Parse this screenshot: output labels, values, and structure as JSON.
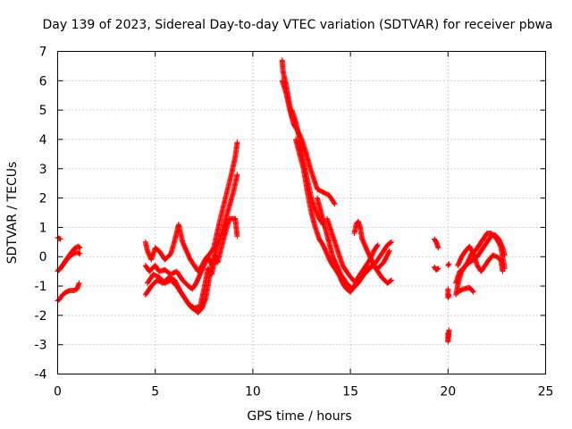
{
  "chart_data": {
    "type": "scatter",
    "title": "Day 139 of 2023, Sidereal Day-to-day VTEC variation (SDTVAR) for receiver pbwa",
    "xlabel": "GPS time / hours",
    "ylabel": "SDTVAR / TECUs",
    "xlim": [
      0,
      25
    ],
    "ylim": [
      -4,
      7
    ],
    "xticks": [
      "0",
      "5",
      "10",
      "15",
      "20",
      "25"
    ],
    "yticks": [
      "-4",
      "-3",
      "-2",
      "-1",
      "0",
      "1",
      "2",
      "3",
      "4",
      "5",
      "6",
      "7"
    ],
    "grid": true,
    "marker": "plus",
    "series": [
      {
        "name": "pbwa",
        "color": "#ff0000",
        "tracks": [
          [
            [
              0.0,
              0.65
            ],
            [
              0.08,
              0.62
            ],
            [
              0.15,
              0.6
            ]
          ],
          [
            [
              0.0,
              -0.5
            ],
            [
              0.15,
              -0.4
            ],
            [
              0.3,
              -0.25
            ],
            [
              0.5,
              -0.05
            ],
            [
              0.7,
              0.15
            ],
            [
              0.9,
              0.3
            ],
            [
              1.05,
              0.35
            ],
            [
              1.15,
              0.3
            ]
          ],
          [
            [
              0.05,
              -0.45
            ],
            [
              0.2,
              -0.35
            ],
            [
              0.4,
              -0.15
            ],
            [
              0.6,
              0.0
            ],
            [
              0.8,
              0.1
            ],
            [
              1.0,
              0.15
            ],
            [
              1.15,
              0.1
            ]
          ],
          [
            [
              0.0,
              -1.5
            ],
            [
              0.1,
              -1.45
            ],
            [
              0.25,
              -1.3
            ],
            [
              0.45,
              -1.2
            ],
            [
              0.65,
              -1.15
            ],
            [
              0.85,
              -1.15
            ],
            [
              1.0,
              -1.1
            ],
            [
              1.1,
              -0.9
            ]
          ],
          [
            [
              4.5,
              0.5
            ],
            [
              4.6,
              0.2
            ],
            [
              4.8,
              -0.1
            ],
            [
              5.0,
              0.3
            ],
            [
              5.2,
              0.2
            ],
            [
              5.5,
              -0.1
            ],
            [
              5.8,
              0.1
            ],
            [
              6.0,
              0.55
            ],
            [
              6.2,
              1.1
            ],
            [
              6.4,
              0.5
            ],
            [
              6.6,
              0.2
            ],
            [
              6.8,
              -0.1
            ],
            [
              7.0,
              -0.3
            ],
            [
              7.2,
              -0.5
            ],
            [
              7.4,
              -0.3
            ],
            [
              7.6,
              -0.05
            ],
            [
              7.8,
              0.1
            ],
            [
              8.0,
              0.3
            ],
            [
              8.3,
              1.2
            ],
            [
              8.6,
              2.0
            ],
            [
              8.9,
              2.8
            ],
            [
              9.1,
              3.4
            ],
            [
              9.2,
              3.9
            ]
          ],
          [
            [
              4.5,
              -0.3
            ],
            [
              4.7,
              -0.5
            ],
            [
              5.0,
              -0.3
            ],
            [
              5.2,
              -0.5
            ],
            [
              5.5,
              -0.45
            ],
            [
              5.8,
              -0.6
            ],
            [
              6.1,
              -0.5
            ],
            [
              6.4,
              -0.8
            ],
            [
              6.7,
              -1.0
            ],
            [
              6.9,
              -1.1
            ],
            [
              7.1,
              -0.9
            ],
            [
              7.3,
              -0.6
            ],
            [
              7.5,
              -0.3
            ],
            [
              7.7,
              0.0
            ],
            [
              7.9,
              -0.3
            ],
            [
              8.1,
              0.2
            ],
            [
              8.4,
              0.8
            ],
            [
              8.7,
              1.5
            ],
            [
              9.0,
              2.2
            ],
            [
              9.2,
              2.8
            ]
          ],
          [
            [
              4.5,
              -1.3
            ],
            [
              4.8,
              -1.0
            ],
            [
              5.1,
              -0.8
            ],
            [
              5.4,
              -0.9
            ],
            [
              5.7,
              -0.7
            ],
            [
              6.0,
              -0.8
            ],
            [
              6.3,
              -1.2
            ],
            [
              6.6,
              -1.5
            ],
            [
              6.8,
              -1.7
            ],
            [
              7.0,
              -1.8
            ],
            [
              7.2,
              -1.9
            ],
            [
              7.4,
              -1.75
            ],
            [
              7.6,
              -1.4
            ],
            [
              7.8,
              -0.6
            ],
            [
              8.0,
              -0.1
            ],
            [
              8.2,
              -0.2
            ],
            [
              8.5,
              0.6
            ],
            [
              8.8,
              1.3
            ],
            [
              9.1,
              1.3
            ],
            [
              9.2,
              0.7
            ]
          ],
          [
            [
              4.6,
              -0.9
            ],
            [
              4.9,
              -0.6
            ],
            [
              5.2,
              -0.7
            ],
            [
              5.5,
              -0.9
            ],
            [
              5.8,
              -0.8
            ],
            [
              6.1,
              -1.0
            ],
            [
              6.4,
              -1.3
            ],
            [
              6.7,
              -1.6
            ],
            [
              7.0,
              -1.75
            ],
            [
              7.3,
              -1.7
            ],
            [
              7.5,
              -1.1
            ],
            [
              7.7,
              -0.4
            ],
            [
              7.9,
              -0.6
            ],
            [
              8.1,
              0.05
            ]
          ],
          [
            [
              11.5,
              6.7
            ],
            [
              11.55,
              6.3
            ],
            [
              11.7,
              5.9
            ],
            [
              11.85,
              5.3
            ],
            [
              12.0,
              4.8
            ],
            [
              12.1,
              4.7
            ]
          ],
          [
            [
              11.5,
              6.0
            ],
            [
              11.7,
              5.6
            ],
            [
              11.9,
              5.0
            ],
            [
              12.1,
              4.5
            ],
            [
              12.3,
              4.3
            ],
            [
              12.5,
              4.0
            ],
            [
              12.7,
              3.6
            ],
            [
              12.9,
              3.1
            ],
            [
              13.1,
              2.7
            ],
            [
              13.3,
              2.3
            ],
            [
              13.6,
              2.2
            ],
            [
              13.9,
              2.1
            ],
            [
              14.2,
              1.8
            ]
          ],
          [
            [
              12.0,
              5.0
            ],
            [
              12.2,
              4.6
            ],
            [
              12.4,
              4.0
            ],
            [
              12.6,
              3.2
            ],
            [
              12.8,
              2.6
            ],
            [
              13.0,
              2.0
            ],
            [
              13.2,
              1.6
            ],
            [
              13.4,
              1.3
            ],
            [
              13.6,
              1.1
            ]
          ],
          [
            [
              12.2,
              4.0
            ],
            [
              12.4,
              3.5
            ],
            [
              12.6,
              3.0
            ],
            [
              12.8,
              2.2
            ],
            [
              13.0,
              1.5
            ],
            [
              13.2,
              1.0
            ],
            [
              13.4,
              0.6
            ],
            [
              13.6,
              0.4
            ],
            [
              13.8,
              0.1
            ],
            [
              14.0,
              -0.2
            ],
            [
              14.2,
              -0.4
            ],
            [
              14.4,
              -0.6
            ],
            [
              14.6,
              -0.9
            ],
            [
              14.8,
              -1.1
            ],
            [
              15.0,
              -1.2
            ],
            [
              15.2,
              -1.0
            ],
            [
              15.4,
              -0.7
            ],
            [
              15.6,
              -0.5
            ],
            [
              15.8,
              -0.3
            ],
            [
              16.0,
              -0.1
            ],
            [
              16.2,
              0.2
            ],
            [
              16.4,
              0.4
            ]
          ],
          [
            [
              13.3,
              2.0
            ],
            [
              13.5,
              1.5
            ],
            [
              13.7,
              1.0
            ],
            [
              13.9,
              0.5
            ],
            [
              14.1,
              0.0
            ],
            [
              14.3,
              -0.3
            ],
            [
              14.5,
              -0.6
            ],
            [
              14.8,
              -0.9
            ],
            [
              15.1,
              -1.1
            ],
            [
              15.4,
              -0.9
            ],
            [
              15.7,
              -0.6
            ],
            [
              16.0,
              -0.4
            ],
            [
              16.3,
              -0.2
            ],
            [
              16.6,
              0.1
            ],
            [
              16.9,
              0.4
            ],
            [
              17.1,
              0.5
            ]
          ],
          [
            [
              13.8,
              1.3
            ],
            [
              14.0,
              0.9
            ],
            [
              14.2,
              0.5
            ],
            [
              14.4,
              0.1
            ],
            [
              14.6,
              -0.3
            ],
            [
              14.9,
              -0.6
            ],
            [
              15.2,
              -0.85
            ],
            [
              15.5,
              -0.7
            ],
            [
              15.8,
              -0.5
            ],
            [
              16.1,
              -0.3
            ],
            [
              16.4,
              -0.4
            ],
            [
              16.7,
              -0.2
            ],
            [
              17.0,
              0.2
            ]
          ],
          [
            [
              15.2,
              0.8
            ],
            [
              15.3,
              1.1
            ],
            [
              15.4,
              1.2
            ],
            [
              15.5,
              1.0
            ],
            [
              15.6,
              0.6
            ],
            [
              15.8,
              0.3
            ],
            [
              16.0,
              0.0
            ],
            [
              16.3,
              -0.4
            ],
            [
              16.6,
              -0.7
            ],
            [
              16.9,
              -0.9
            ],
            [
              17.1,
              -0.8
            ]
          ],
          [
            [
              19.3,
              0.6
            ],
            [
              19.4,
              0.5
            ],
            [
              19.5,
              0.3
            ]
          ],
          [
            [
              19.3,
              -0.35
            ],
            [
              19.4,
              -0.45
            ],
            [
              19.5,
              -0.4
            ]
          ],
          [
            [
              20.0,
              -1.1
            ],
            [
              20.0,
              -1.4
            ],
            [
              20.05,
              -1.3
            ]
          ],
          [
            [
              20.0,
              -0.3
            ],
            [
              20.05,
              -0.25
            ]
          ],
          [
            [
              20.0,
              -2.6
            ],
            [
              20.0,
              -2.9
            ],
            [
              20.05,
              -2.5
            ]
          ],
          [
            [
              20.4,
              -1.3
            ],
            [
              20.5,
              -1.0
            ],
            [
              20.6,
              -0.7
            ],
            [
              20.7,
              -0.5
            ],
            [
              20.9,
              -0.3
            ],
            [
              21.1,
              -0.2
            ],
            [
              21.3,
              -0.1
            ],
            [
              21.5,
              0.0
            ],
            [
              21.8,
              0.3
            ],
            [
              22.0,
              0.5
            ],
            [
              22.2,
              0.7
            ],
            [
              22.4,
              0.75
            ],
            [
              22.6,
              0.6
            ],
            [
              22.8,
              0.3
            ],
            [
              22.9,
              0.05
            ]
          ],
          [
            [
              20.4,
              -0.9
            ],
            [
              20.6,
              -0.5
            ],
            [
              20.8,
              -0.4
            ],
            [
              21.0,
              -0.2
            ],
            [
              21.2,
              0.1
            ],
            [
              21.4,
              0.2
            ],
            [
              21.6,
              0.4
            ],
            [
              21.8,
              0.6
            ],
            [
              22.0,
              0.8
            ],
            [
              22.2,
              0.8
            ],
            [
              22.5,
              0.6
            ],
            [
              22.7,
              0.35
            ],
            [
              22.9,
              -0.4
            ]
          ],
          [
            [
              20.5,
              -0.3
            ],
            [
              20.7,
              0.0
            ],
            [
              20.9,
              0.2
            ],
            [
              21.1,
              0.35
            ],
            [
              21.3,
              0.1
            ],
            [
              21.5,
              -0.3
            ],
            [
              21.7,
              -0.5
            ],
            [
              21.9,
              -0.3
            ],
            [
              22.1,
              -0.1
            ],
            [
              22.3,
              0.05
            ],
            [
              22.5,
              0.0
            ],
            [
              22.7,
              -0.1
            ],
            [
              22.8,
              -0.5
            ]
          ],
          [
            [
              20.5,
              -1.2
            ],
            [
              20.8,
              -1.1
            ],
            [
              21.1,
              -1.05
            ],
            [
              21.3,
              -1.2
            ]
          ]
        ]
      }
    ]
  }
}
